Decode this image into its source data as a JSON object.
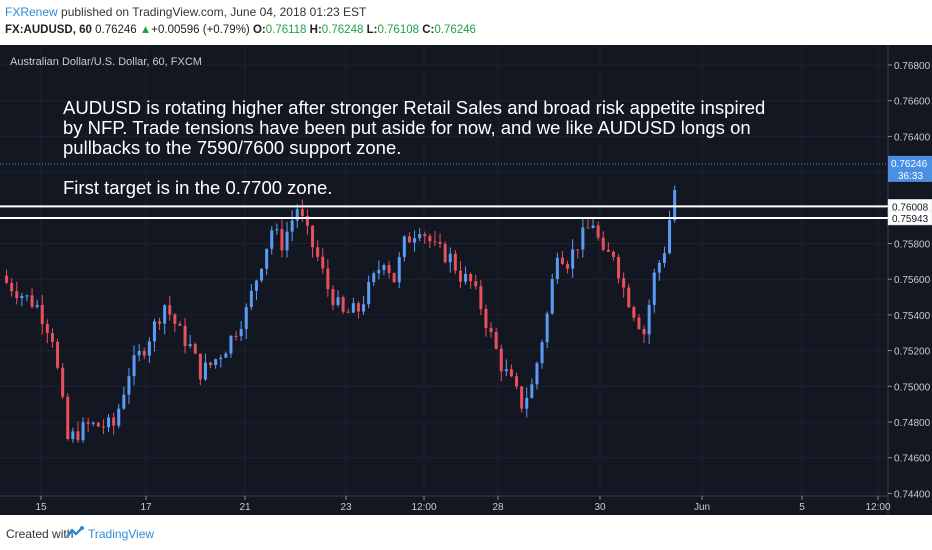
{
  "header": {
    "brand": "FXRenew",
    "published_text": "published on TradingView.com, June 04, 2018 01:23 EST",
    "symbol": "FX:AUDUSD, 60",
    "last": "0.76246",
    "change": "+0.00596 (+0.79%)",
    "open_label": "O:",
    "open": "0.76118",
    "high_label": "H:",
    "high": "0.76248",
    "low_label": "L:",
    "low": "0.76108",
    "close_label": "C:",
    "close": "0.76246"
  },
  "footer": {
    "created_with": "Created with",
    "tradingview": "TradingView",
    "logo_icon": "tradingview-logo-icon"
  },
  "colors": {
    "background": "#131722",
    "up": "#5b9cf6",
    "down": "#e8505b",
    "support_line": "#ffffff",
    "price_line": "#4a90e2",
    "annotation_text": "#ffffff"
  },
  "chart_data": {
    "type": "candlestick",
    "title": "Australian Dollar/U.S. Dollar, 60, FXCM",
    "x_tick_labels": [
      "15",
      "17",
      "21",
      "23",
      "12:00",
      "28",
      "30",
      "Jun",
      "5",
      "12:00"
    ],
    "y_tick_labels": [
      "0.76800",
      "0.76600",
      "0.76400",
      "0.76200",
      "0.76000",
      "0.75800",
      "0.75600",
      "0.75400",
      "0.75200",
      "0.75000",
      "0.74800",
      "0.74600",
      "0.74400"
    ],
    "ylim": [
      0.7436,
      0.7694
    ],
    "grid": true,
    "annotation": [
      "AUDUSD is rotating higher after stronger Retail Sales and broad risk appetite inspired",
      "by NFP. Trade tensions have been put aside for now, and we like AUDUSD longs on",
      "pullbacks to the 7590/7600 support zone.",
      "",
      "First target is in the 0.7700 zone."
    ],
    "horizontal_lines": [
      {
        "value": 0.76008,
        "label": "0.76008",
        "style": "support"
      },
      {
        "value": 0.75943,
        "label": "0.75943",
        "style": "support"
      }
    ],
    "current_price": {
      "value": 0.76246,
      "label": "0.76246",
      "countdown": "36:33"
    },
    "path": [
      [
        0,
        0.7558
      ],
      [
        6,
        0.7545
      ],
      [
        9,
        0.7528
      ],
      [
        12,
        0.747
      ],
      [
        16,
        0.7478
      ],
      [
        21,
        0.7478
      ],
      [
        24,
        0.7508
      ],
      [
        27,
        0.7522
      ],
      [
        31,
        0.7546
      ],
      [
        34,
        0.753
      ],
      [
        36,
        0.7522
      ],
      [
        38,
        0.7508
      ],
      [
        40,
        0.7512
      ],
      [
        43,
        0.7522
      ],
      [
        47,
        0.7542
      ],
      [
        50,
        0.757
      ],
      [
        52,
        0.7588
      ],
      [
        54,
        0.758
      ],
      [
        57,
        0.76
      ],
      [
        59,
        0.7585
      ],
      [
        61,
        0.7572
      ],
      [
        63,
        0.7555
      ],
      [
        66,
        0.754
      ],
      [
        69,
        0.7543
      ],
      [
        72,
        0.756
      ],
      [
        74,
        0.7572
      ],
      [
        76,
        0.756
      ],
      [
        78,
        0.758
      ],
      [
        81,
        0.759
      ],
      [
        84,
        0.7577
      ],
      [
        87,
        0.7572
      ],
      [
        89,
        0.7562
      ],
      [
        91,
        0.7558
      ],
      [
        93,
        0.7545
      ],
      [
        95,
        0.7528
      ],
      [
        97,
        0.7512
      ],
      [
        99,
        0.7502
      ],
      [
        101,
        0.749
      ],
      [
        103,
        0.75
      ],
      [
        106,
        0.754
      ],
      [
        108,
        0.7577
      ],
      [
        110,
        0.757
      ],
      [
        112,
        0.758
      ],
      [
        115,
        0.7592
      ],
      [
        117,
        0.7572
      ],
      [
        119,
        0.7575
      ],
      [
        121,
        0.7555
      ],
      [
        123,
        0.7542
      ],
      [
        125,
        0.753
      ],
      [
        127,
        0.7562
      ],
      [
        129,
        0.7577
      ],
      [
        131,
        0.761
      ]
    ]
  }
}
